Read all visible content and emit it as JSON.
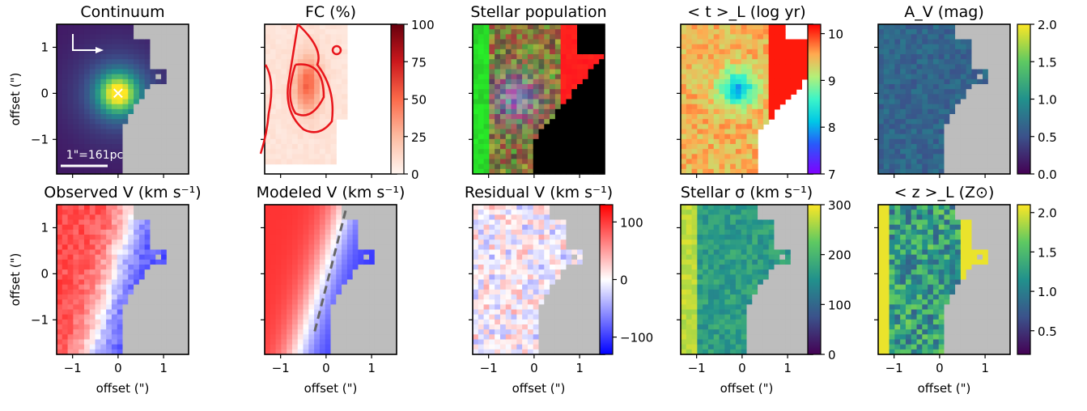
{
  "figure": {
    "x_label": "offset (\")",
    "y_label": "offset (\")",
    "panels_top": [
      {
        "id": "continuum",
        "title": "Continuum",
        "scalebar_label": "1\"=161pc",
        "nucleus_marker": "×",
        "north_east_arrows": true
      },
      {
        "id": "fc",
        "title": "FC (%)"
      },
      {
        "id": "stellar-population",
        "title": "Stellar population"
      },
      {
        "id": "mean-age",
        "title": "< t >_L (log yr)"
      },
      {
        "id": "av",
        "title": "A_V (mag)"
      }
    ],
    "panels_bottom": [
      {
        "id": "observed-v",
        "title": "Observed V (km s⁻¹)"
      },
      {
        "id": "modeled-v",
        "title": "Modeled V (km s⁻¹)"
      },
      {
        "id": "residual-v",
        "title": "Residual V (km s⁻¹)"
      },
      {
        "id": "stellar-sigma",
        "title": "Stellar σ (km s⁻¹)"
      },
      {
        "id": "metallicity",
        "title": "< z >_L (Z⊙)"
      }
    ],
    "x_ticks": [
      "−1",
      "0",
      "1"
    ],
    "y_ticks": [
      "1",
      "0",
      "−1"
    ],
    "colorbars": {
      "fc": {
        "ticks": [
          "0",
          "25",
          "50",
          "75",
          "100"
        ],
        "range": [
          0,
          100
        ],
        "cmap": "reds"
      },
      "mean-age": {
        "ticks": [
          "7",
          "8",
          "9",
          "10"
        ],
        "range": [
          7,
          10.2
        ],
        "cmap": "rainbow"
      },
      "av": {
        "ticks": [
          "0.0",
          "0.5",
          "1.0",
          "1.5",
          "2.0"
        ],
        "range": [
          0,
          2
        ],
        "cmap": "viridis"
      },
      "residual-v": {
        "ticks": [
          "−100",
          "0",
          "100"
        ],
        "range": [
          -130,
          130
        ],
        "cmap": "bwr"
      },
      "stellar-sigma": {
        "ticks": [
          "0",
          "100",
          "200",
          "300"
        ],
        "range": [
          0,
          300
        ],
        "cmap": "viridis"
      },
      "metallicity": {
        "ticks": [
          "0.5",
          "1.0",
          "1.5",
          "2.0"
        ],
        "range": [
          0.2,
          2.1
        ],
        "cmap": "viridis"
      }
    },
    "colors": {
      "masked": "#bdbdbd",
      "frame": "#000000",
      "contour": "#e8141a",
      "black_fill": "#000000"
    }
  },
  "chart_data": {
    "type": "heatmap",
    "panels": 10,
    "layout": "2 rows x 5 columns",
    "x_range": [
      -1.35,
      1.55
    ],
    "y_range": [
      -1.75,
      1.5
    ],
    "x_label": "offset (\")",
    "y_label": "offset (\")"
  }
}
